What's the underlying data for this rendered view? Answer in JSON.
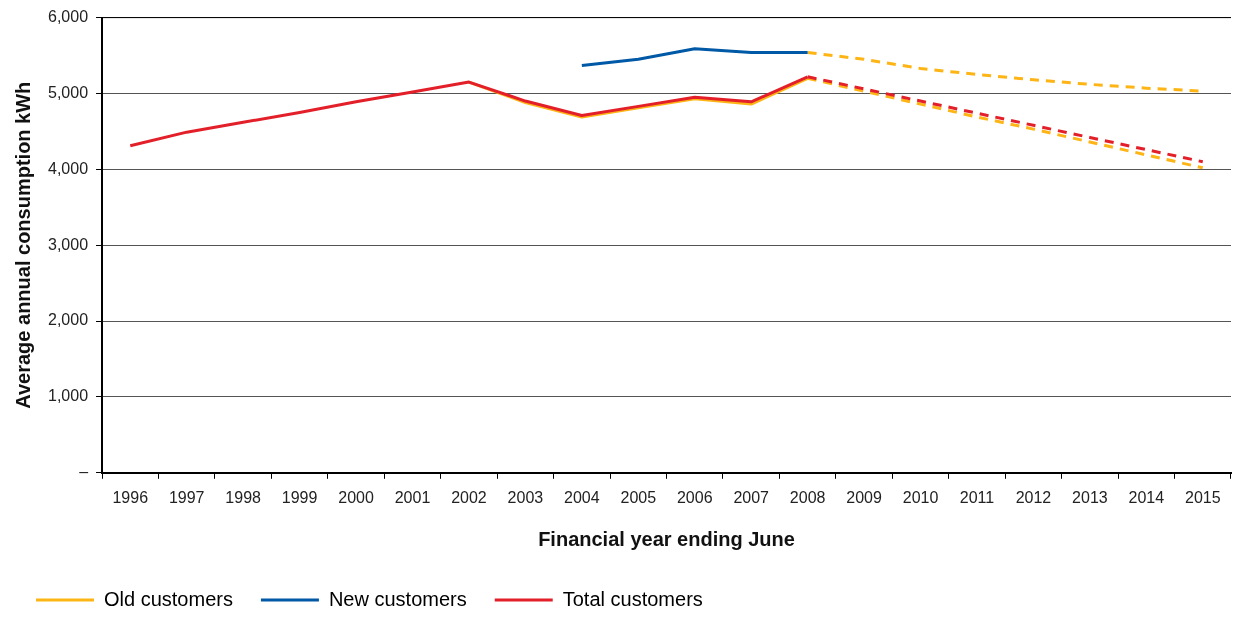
{
  "chart_data": {
    "type": "line",
    "xlabel": "Financial year ending June",
    "ylabel": "Average annual consumption kWh",
    "categories": [
      "1996",
      "1997",
      "1998",
      "1999",
      "2000",
      "2001",
      "2002",
      "2003",
      "2004",
      "2005",
      "2006",
      "2007",
      "2008",
      "2009",
      "2010",
      "2011",
      "2012",
      "2013",
      "2014",
      "2015"
    ],
    "ylim": [
      0,
      6000
    ],
    "yticks": [
      {
        "value": 0,
        "label": "–"
      },
      {
        "value": 1000,
        "label": "1,000"
      },
      {
        "value": 2000,
        "label": "2,000"
      },
      {
        "value": 3000,
        "label": "3,000"
      },
      {
        "value": 4000,
        "label": "4,000"
      },
      {
        "value": 5000,
        "label": "5,000"
      },
      {
        "value": 6000,
        "label": "6,000"
      }
    ],
    "grid": "y",
    "legend": "bottom left",
    "marker": "none",
    "series": [
      {
        "name": "Old customers",
        "color": "#fdb515",
        "line_style": "solid",
        "values": [
          null,
          null,
          null,
          null,
          null,
          null,
          5150,
          4880,
          4690,
          4810,
          4930,
          4860,
          5200,
          null,
          null,
          null,
          null,
          null,
          null,
          null
        ]
      },
      {
        "color": "#fdb515",
        "line_style": "dashed",
        "values": [
          null,
          null,
          null,
          null,
          null,
          null,
          null,
          null,
          null,
          null,
          null,
          null,
          5200,
          5030,
          4860,
          4690,
          4530,
          4360,
          4190,
          4020
        ]
      },
      {
        "color": "#fdb515",
        "line_style": "dashed",
        "values": [
          null,
          null,
          null,
          null,
          null,
          null,
          null,
          null,
          null,
          null,
          null,
          null,
          5540,
          5450,
          5330,
          5250,
          5180,
          5120,
          5070,
          5030
        ]
      },
      {
        "name": "New customers",
        "color": "#0059a6",
        "line_style": "solid",
        "values": [
          null,
          null,
          null,
          null,
          null,
          null,
          null,
          null,
          5370,
          5450,
          5590,
          5540,
          5540,
          null,
          null,
          null,
          null,
          null,
          null,
          null
        ]
      },
      {
        "name": "Total customers",
        "color": "#e3202a",
        "line_style": "solid",
        "values": [
          4310,
          4490,
          4620,
          4750,
          4890,
          5020,
          5150,
          4900,
          4710,
          4830,
          4950,
          4890,
          5220,
          null,
          null,
          null,
          null,
          null,
          null,
          null
        ]
      },
      {
        "color": "#e3202a",
        "line_style": "dashed",
        "values": [
          null,
          null,
          null,
          null,
          null,
          null,
          null,
          null,
          null,
          null,
          null,
          null,
          5220,
          5060,
          4900,
          4740,
          4580,
          4420,
          4260,
          4100
        ]
      }
    ]
  }
}
